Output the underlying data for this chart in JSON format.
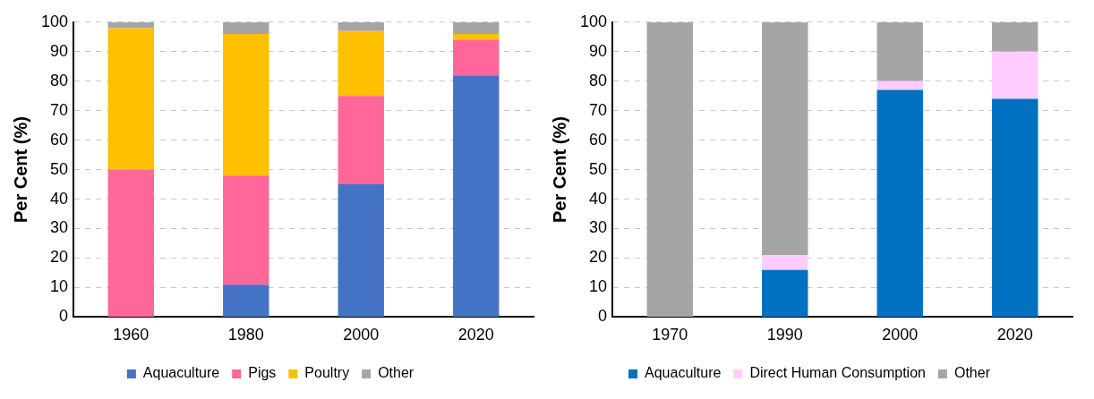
{
  "chart_data": [
    {
      "type": "bar",
      "stacked": true,
      "ylabel": "Per Cent (%)",
      "categories": [
        "1960",
        "1980",
        "2000",
        "2020"
      ],
      "ylim": [
        0,
        100
      ],
      "yticks": [
        0,
        10,
        20,
        30,
        40,
        50,
        60,
        70,
        80,
        90,
        100
      ],
      "grid": "y",
      "legend": "bottom",
      "series": [
        {
          "name": "Aquaculture",
          "color": "#4472c4",
          "values": [
            0,
            11,
            45,
            82
          ]
        },
        {
          "name": "Pigs",
          "color": "#ff6699",
          "values": [
            50,
            37,
            30,
            12
          ]
        },
        {
          "name": "Poultry",
          "color": "#ffc000",
          "values": [
            48,
            48,
            22,
            2
          ]
        },
        {
          "name": "Other",
          "color": "#a5a5a5",
          "values": [
            2,
            4,
            3,
            4
          ]
        }
      ]
    },
    {
      "type": "bar",
      "stacked": true,
      "ylabel": "Per Cent (%)",
      "categories": [
        "1970",
        "1990",
        "2000",
        "2020"
      ],
      "ylim": [
        0,
        100
      ],
      "yticks": [
        0,
        10,
        20,
        30,
        40,
        50,
        60,
        70,
        80,
        90,
        100
      ],
      "grid": "y",
      "legend": "bottom",
      "series": [
        {
          "name": "Aquaculture",
          "color": "#0070c0",
          "values": [
            0,
            16,
            77,
            74
          ]
        },
        {
          "name": "Direct Human Consumption",
          "color": "#ffccff",
          "values": [
            0,
            5,
            3,
            16
          ]
        },
        {
          "name": "Other",
          "color": "#a5a5a5",
          "values": [
            100,
            79,
            20,
            10
          ]
        }
      ]
    }
  ]
}
